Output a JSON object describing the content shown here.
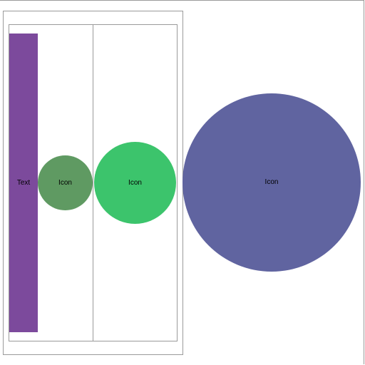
{
  "text_block": {
    "label": "Text",
    "color": "#7c4a9c"
  },
  "icons": [
    {
      "label": "Icon",
      "color": "#5f9a62"
    },
    {
      "label": "Icon",
      "color": "#3cc46c"
    },
    {
      "label": "Icon",
      "color": "#6064a0"
    }
  ]
}
